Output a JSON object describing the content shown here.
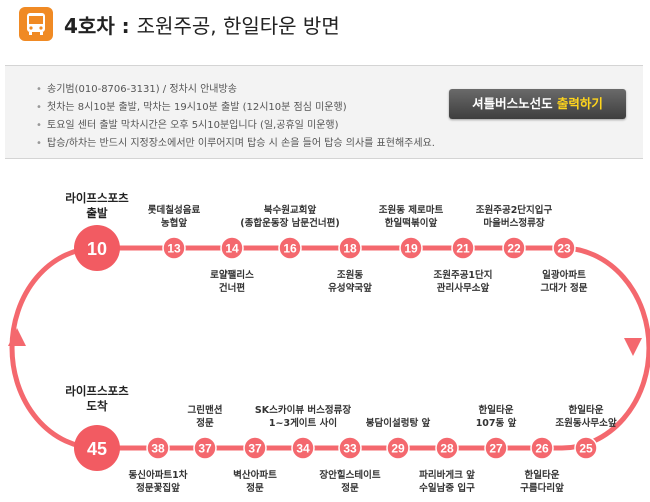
{
  "header": {
    "icon": "bus-icon",
    "route": "4호차",
    "separator": " : ",
    "destination": "조원주공, 한일타운 방면"
  },
  "notices": [
    "송기범(010-8706-3131) / 정차시 안내방송",
    "첫차는 8시10분 출발, 막차는 19시10분 출발 (12시10분 점심 미운행)",
    "토요일 센터 출발 막차시간은 오후 5시10분입니다 (일,공휴일 미운행)",
    "탑승/하차는 반드시 지정장소에서만 이루어지며 탑승 시 손을 들어 탑승 의사를 표현해주세요."
  ],
  "print_button": {
    "label_prefix": "셔틀버스노선도 ",
    "label_highlight": "출력하기"
  },
  "colors": {
    "route_line": "#f4686e",
    "stop_fill": "#f4686e",
    "terminal_fill": "#f25b62",
    "icon_bg": "#f08a24"
  },
  "terminals": {
    "start": {
      "number": "10",
      "label_line1": "라이프스포츠",
      "label_line2": "출발"
    },
    "end": {
      "number": "45",
      "label_line1": "라이프스포츠",
      "label_line2": "도착"
    }
  },
  "top_stops": [
    {
      "number": "13",
      "label1": "롯데칠성음료",
      "label2": "농협앞"
    },
    {
      "number": "14",
      "label1": "로얄팰리스",
      "label2": "건너편"
    },
    {
      "number": "16",
      "label1": "북수원교회앞",
      "label2": "(종합운동장 남문건너편)"
    },
    {
      "number": "18",
      "label1": "조원동",
      "label2": "유성약국앞"
    },
    {
      "number": "19",
      "label1": "조원동 제로마트",
      "label2": "한일떡볶이앞"
    },
    {
      "number": "21",
      "label1": "조원주공1단지",
      "label2": "관리사무소앞"
    },
    {
      "number": "22",
      "label1": "조원주공2단지입구",
      "label2": "마을버스정류장"
    },
    {
      "number": "23",
      "label1": "일광아파트",
      "label2": "그대가 정문"
    }
  ],
  "bottom_stops": [
    {
      "number": "25",
      "label1": "한일타운",
      "label2": "조원동사무소앞"
    },
    {
      "number": "26",
      "label1": "한일타운",
      "label2": "구름다리앞"
    },
    {
      "number": "27",
      "label1": "한일타운",
      "label2": "107동 앞"
    },
    {
      "number": "28",
      "label1": "파리바게크 앞",
      "label2": "수일남중 입구"
    },
    {
      "number": "29",
      "label1": "봉담이설렁탕 앞",
      "label2": ""
    },
    {
      "number": "33",
      "label1": "장안힐스테이트",
      "label2": "정문"
    },
    {
      "number": "34",
      "label1": "SK스카이뷰 버스정류장",
      "label2": "1~3게이트 사이"
    },
    {
      "number": "37",
      "label1": "벽산아파트",
      "label2": "정문"
    },
    {
      "number": "37",
      "label1": "그린맨션",
      "label2": "정문"
    },
    {
      "number": "38",
      "label1": "동신아파트1차",
      "label2": "정문꽃집앞"
    }
  ]
}
